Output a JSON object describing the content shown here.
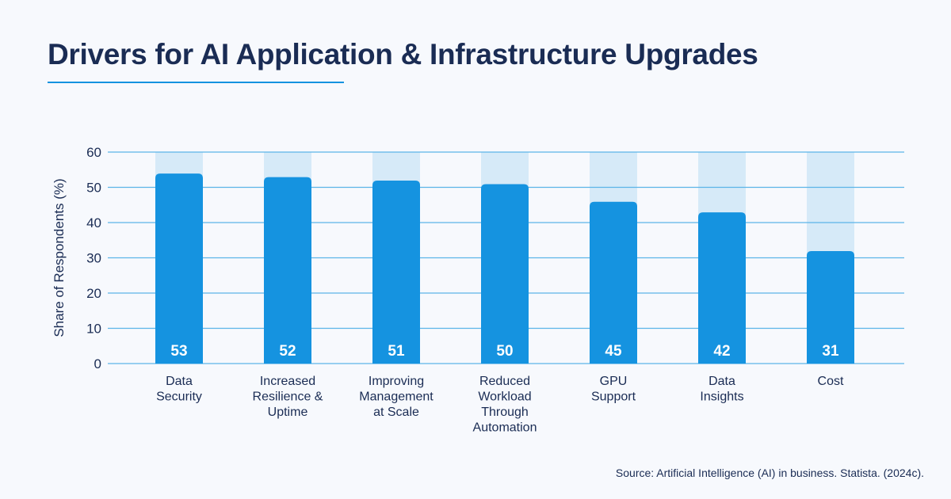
{
  "title": "Drivers for AI Application & Infrastructure Upgrades",
  "source": "Source: Artificial Intelligence (AI) in business. Statista. (2024c).",
  "colors": {
    "bar": "#1593e0",
    "bar_track": "#d6eaf8",
    "gridline": "#5bb5e8",
    "text": "#1a2c54",
    "value_label": "#ffffff"
  },
  "chart_data": {
    "type": "bar",
    "categories": [
      [
        "Data",
        "Security"
      ],
      [
        "Increased",
        "Resilience &",
        "Uptime"
      ],
      [
        "Improving",
        "Management",
        "at Scale"
      ],
      [
        "Reduced",
        "Workload",
        "Through",
        "Automation"
      ],
      [
        "GPU",
        "Support"
      ],
      [
        "Data",
        "Insights"
      ],
      [
        "Cost"
      ]
    ],
    "values": [
      53,
      52,
      51,
      50,
      45,
      42,
      31
    ],
    "ylabel": "Share of Respondents (%)",
    "ylim": [
      0,
      60
    ],
    "yticks": [
      0,
      10,
      20,
      30,
      40,
      50,
      60
    ],
    "grid": true,
    "legend": "none"
  }
}
